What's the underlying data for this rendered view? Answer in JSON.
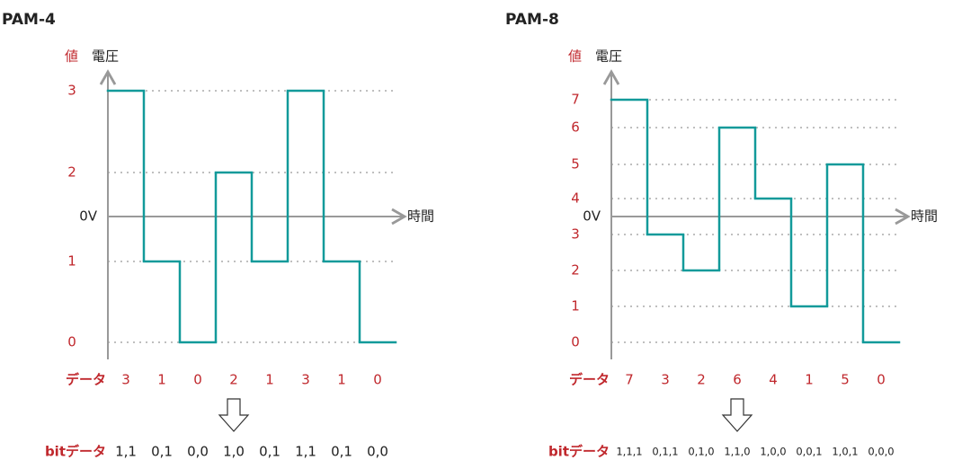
{
  "panels": [
    {
      "title": "PAM-4",
      "y_label_value": "値",
      "y_label_voltage": "電圧",
      "zero_label": "0V",
      "x_label": "時間",
      "levels": [
        0,
        1,
        2,
        3
      ],
      "data_label": "データ",
      "data": [
        3,
        1,
        0,
        2,
        1,
        3,
        1,
        0
      ],
      "bit_label": "bitデータ",
      "bits": [
        "1,1",
        "0,1",
        "0,0",
        "1,0",
        "0,1",
        "1,1",
        "0,1",
        "0,0"
      ]
    },
    {
      "title": "PAM-8",
      "y_label_value": "値",
      "y_label_voltage": "電圧",
      "zero_label": "0V",
      "x_label": "時間",
      "levels": [
        0,
        1,
        2,
        3,
        4,
        5,
        6,
        7
      ],
      "data_label": "データ",
      "data": [
        7,
        3,
        2,
        6,
        4,
        1,
        5,
        0
      ],
      "bit_label": "bitデータ",
      "bits": [
        "1,1,1",
        "0,1,1",
        "0,1,0",
        "1,1,0",
        "1,0,0",
        "0,0,1",
        "1,0,1",
        "0,0,0"
      ]
    }
  ]
}
